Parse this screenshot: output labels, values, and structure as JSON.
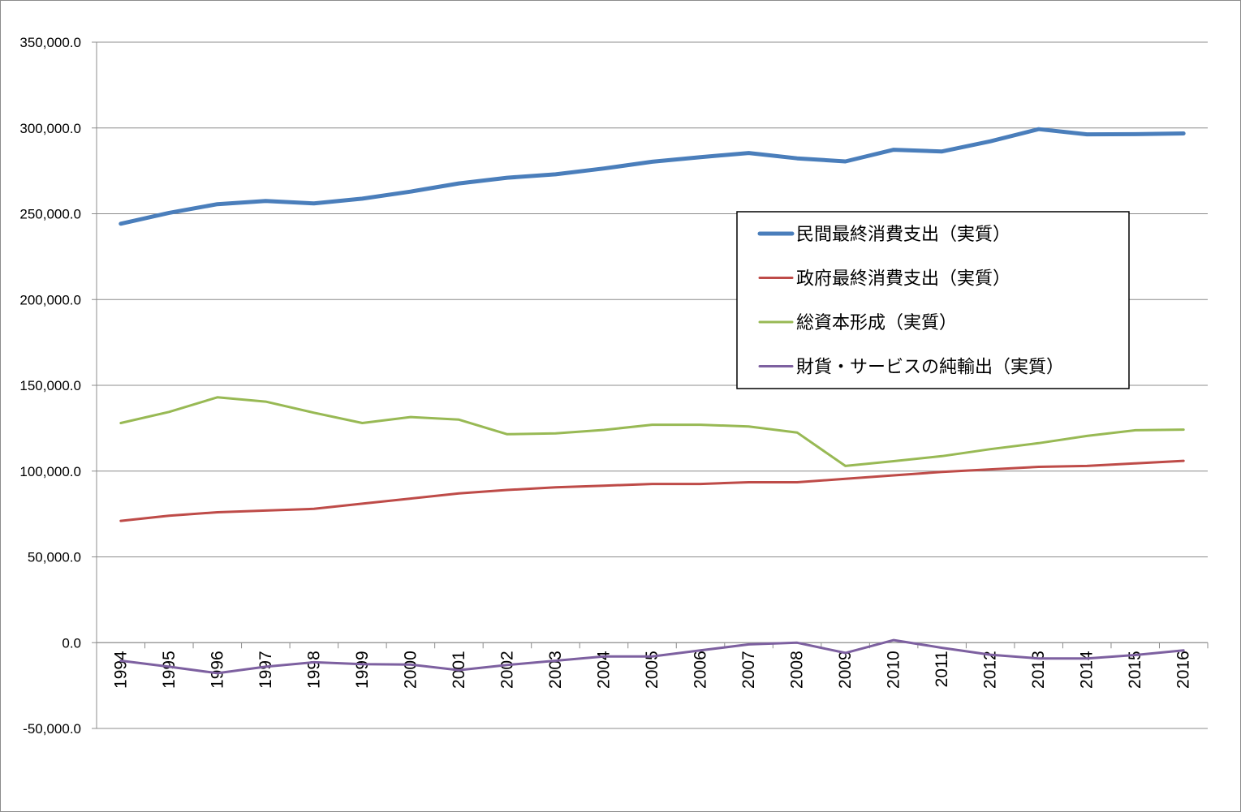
{
  "chart_data": {
    "type": "line",
    "title": "",
    "xlabel": "",
    "ylabel": "",
    "ylim": [
      -50000,
      350000
    ],
    "yticks": [
      -50000,
      0,
      50000,
      100000,
      150000,
      200000,
      250000,
      300000,
      350000
    ],
    "ytick_labels": [
      "-50,000.0",
      "0.0",
      "50,000.0",
      "100,000.0",
      "150,000.0",
      "200,000.0",
      "250,000.0",
      "300,000.0",
      "350,000.0"
    ],
    "grid": true,
    "legend_position": "center-right",
    "categories": [
      "1994",
      "1995",
      "1996",
      "1997",
      "1998",
      "1999",
      "2000",
      "2001",
      "2002",
      "2003",
      "2004",
      "2005",
      "2006",
      "2007",
      "2008",
      "2009",
      "2010",
      "2011",
      "2012",
      "2013",
      "2014",
      "2015",
      "2016"
    ],
    "series": [
      {
        "name": "民間最終消費支出（実質）",
        "color": "#4a7ebb",
        "values": [
          244200,
          250500,
          255600,
          257400,
          256000,
          258800,
          262900,
          267700,
          271000,
          273000,
          276400,
          280300,
          283000,
          285400,
          282300,
          280500,
          287300,
          286300,
          292200,
          299300,
          296300,
          296400,
          296800
        ]
      },
      {
        "name": "政府最終消費支出（実質）",
        "color": "#be4b48",
        "values": [
          71000,
          74000,
          76000,
          77000,
          78000,
          81000,
          84000,
          87000,
          89000,
          90500,
          91500,
          92500,
          92500,
          93500,
          93500,
          95500,
          97500,
          99500,
          101000,
          102500,
          103000,
          104500,
          106000
        ]
      },
      {
        "name": "総資本形成（実質）",
        "color": "#98b954",
        "values": [
          128000,
          134500,
          143000,
          140500,
          134000,
          128000,
          131500,
          130000,
          121500,
          122000,
          124000,
          127000,
          127000,
          126000,
          122500,
          103000,
          105800,
          108700,
          112800,
          116300,
          120500,
          123800,
          124200
        ]
      },
      {
        "name": "財貨・サービスの純輸出（実質）",
        "color": "#7d60a0",
        "values": [
          -10500,
          -14000,
          -17800,
          -14000,
          -11400,
          -12500,
          -12800,
          -16000,
          -13000,
          -10500,
          -8000,
          -8000,
          -4500,
          -1000,
          0,
          -6000,
          1500,
          -3000,
          -7000,
          -9200,
          -9200,
          -7200,
          -4500
        ]
      }
    ]
  }
}
